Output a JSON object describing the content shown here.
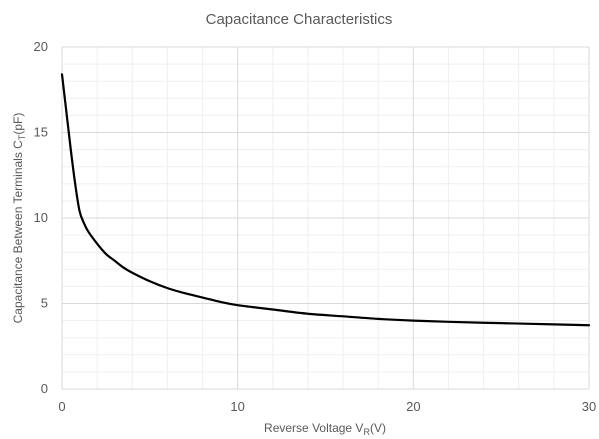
{
  "chart_data": {
    "type": "line",
    "title": "Capacitance Characteristics",
    "xlabel": {
      "main": "Reverse Voltage V",
      "sub": "R",
      "tail": "(V)"
    },
    "ylabel": {
      "main": "Capacitance Between Terminals C",
      "sub": "T",
      "tail": "(pF)"
    },
    "xlim": [
      0,
      30
    ],
    "ylim": [
      0,
      20
    ],
    "x_ticks": [
      0,
      10,
      20,
      30
    ],
    "y_ticks": [
      0,
      5,
      10,
      15,
      20
    ],
    "x_tick_labels": [
      "0",
      "10",
      "20",
      "30"
    ],
    "y_tick_labels": [
      "0",
      "5",
      "10",
      "15",
      "20"
    ],
    "major_grid": true,
    "minor_grid": true,
    "line_color": "#000000",
    "grid_major_color": "#d9d9d9",
    "grid_minor_color": "#efefef",
    "series": [
      {
        "x": [
          0,
          0.25,
          0.5,
          0.75,
          1,
          1.25,
          1.5,
          2,
          2.5,
          3,
          3.5,
          4,
          5,
          6,
          7,
          8,
          9,
          10,
          12,
          14,
          16,
          18,
          20,
          22,
          25,
          28,
          30
        ],
        "y": [
          18.4,
          16.2,
          14.0,
          12.0,
          10.4,
          9.7,
          9.2,
          8.5,
          7.9,
          7.5,
          7.1,
          6.8,
          6.3,
          5.9,
          5.6,
          5.35,
          5.1,
          4.9,
          4.65,
          4.4,
          4.25,
          4.1,
          4.0,
          3.93,
          3.85,
          3.78,
          3.73
        ]
      }
    ]
  }
}
